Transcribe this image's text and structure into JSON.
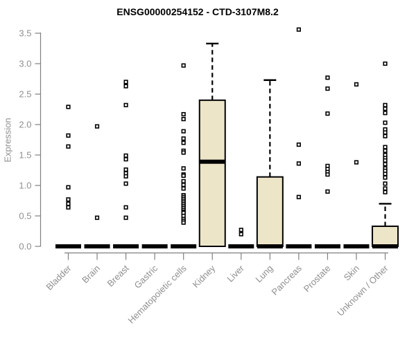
{
  "chart_data": {
    "type": "box",
    "title": "ENSG00000254152 - CTD-3107M8.2",
    "ylabel": "Expression",
    "xlabel": "",
    "ylim": [
      0,
      3.5
    ],
    "yticks": [
      0,
      0.5,
      1,
      1.5,
      2,
      2.5,
      3,
      3.5
    ],
    "grid": false,
    "legend": "none",
    "colors": {
      "box_fill": "#ece5c8",
      "box_border": "#000000",
      "median": "#000000",
      "outlier_stroke": "#000000",
      "outlier_fill": "#ffffff",
      "axis": "#7f7f7f",
      "tick_label": "#8f8f8f",
      "title": "#000000",
      "background": "#ffffff"
    },
    "categories": [
      "Bladder",
      "Brain",
      "Breast",
      "Gastric",
      "Hematopoietic cells",
      "Kidney",
      "Liver",
      "Lung",
      "Pancreas",
      "Prostate",
      "Skin",
      "Unknown / Other"
    ],
    "series": [
      {
        "category": "Bladder",
        "q1": 0,
        "median": 0,
        "q3": 0,
        "whisker_low": 0,
        "whisker_high": 0,
        "outliers": [
          2.29,
          1.82,
          1.64,
          0.97,
          0.77,
          0.7,
          0.64
        ]
      },
      {
        "category": "Brain",
        "q1": 0,
        "median": 0,
        "q3": 0,
        "whisker_low": 0,
        "whisker_high": 0,
        "outliers": [
          1.97,
          0.47
        ]
      },
      {
        "category": "Breast",
        "q1": 0,
        "median": 0,
        "q3": 0,
        "whisker_low": 0,
        "whisker_high": 0,
        "outliers": [
          2.7,
          2.63,
          2.32,
          1.49,
          1.43,
          1.26,
          1.2,
          1.15,
          1.03,
          0.64,
          0.47
        ]
      },
      {
        "category": "Gastric",
        "q1": 0,
        "median": 0,
        "q3": 0,
        "whisker_low": 0,
        "whisker_high": 0,
        "outliers": []
      },
      {
        "category": "Hematopoietic cells",
        "q1": 0,
        "median": 0,
        "q3": 0,
        "whisker_low": 0,
        "whisker_high": 0,
        "outliers": [
          2.97,
          2.17,
          2.09,
          1.89,
          1.77,
          1.7,
          1.57,
          1.54,
          1.28,
          1.18,
          1.16,
          1.07,
          1.01,
          0.95,
          0.84,
          0.81,
          0.78,
          0.75,
          0.72,
          0.69,
          0.66,
          0.63,
          0.6,
          0.57,
          0.55,
          0.5,
          0.45,
          0.42,
          0.39
        ]
      },
      {
        "category": "Kidney",
        "q1": 0,
        "median": 1.39,
        "q3": 2.4,
        "whisker_low": 0,
        "whisker_high": 3.33,
        "outliers": []
      },
      {
        "category": "Liver",
        "q1": 0,
        "median": 0,
        "q3": 0,
        "whisker_low": 0,
        "whisker_high": 0,
        "outliers": [
          0.27,
          0.2
        ]
      },
      {
        "category": "Lung",
        "q1": 0,
        "median": 0,
        "q3": 1.14,
        "whisker_low": 0,
        "whisker_high": 2.73,
        "outliers": []
      },
      {
        "category": "Pancreas",
        "q1": 0,
        "median": 0,
        "q3": 0,
        "whisker_low": 0,
        "whisker_high": 0,
        "outliers": [
          3.56,
          1.67,
          1.36,
          0.81
        ]
      },
      {
        "category": "Prostate",
        "q1": 0,
        "median": 0,
        "q3": 0,
        "whisker_low": 0,
        "whisker_high": 0,
        "outliers": [
          2.77,
          2.59,
          2.18,
          1.32,
          1.27,
          1.22,
          1.18,
          0.9
        ]
      },
      {
        "category": "Skin",
        "q1": 0,
        "median": 0,
        "q3": 0,
        "whisker_low": 0,
        "whisker_high": 0,
        "outliers": [
          2.66,
          1.38
        ]
      },
      {
        "category": "Unknown / Other",
        "q1": 0,
        "median": 0,
        "q3": 0.33,
        "whisker_low": 0,
        "whisker_high": 0.7,
        "outliers": [
          3.0,
          2.32,
          2.26,
          2.19,
          2.03,
          1.92,
          1.87,
          1.81,
          1.63,
          1.57,
          1.5,
          1.45,
          1.41,
          1.35,
          1.28,
          1.24,
          1.19,
          1.13,
          1.03,
          0.95,
          0.89
        ]
      }
    ]
  }
}
